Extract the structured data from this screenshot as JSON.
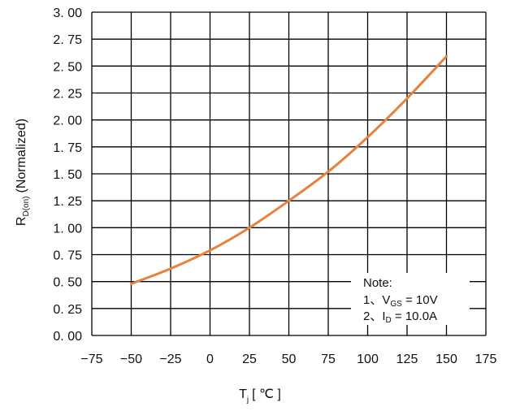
{
  "chart_data": {
    "type": "line",
    "xlabel_main": "T",
    "xlabel_sub": "j",
    "xlabel_unit": "[ ℃ ]",
    "ylabel_main": "R",
    "ylabel_sub": "D(on)",
    "ylabel_rest": "(Normalized)",
    "xlim": [
      -75,
      175
    ],
    "ylim": [
      0.0,
      3.0
    ],
    "x_ticks": [
      -75,
      -50,
      -25,
      0,
      25,
      50,
      75,
      100,
      125,
      150,
      175
    ],
    "x_tick_labels": [
      "−75",
      "−50",
      "−25",
      "0",
      "25",
      "50",
      "75",
      "100",
      "125",
      "150",
      "175"
    ],
    "y_ticks": [
      0,
      0.25,
      0.5,
      0.75,
      1.0,
      1.25,
      1.5,
      1.75,
      2.0,
      2.25,
      2.5,
      2.75,
      3.0
    ],
    "y_tick_labels": [
      "0. 00",
      "0. 25",
      "0. 50",
      "0. 75",
      "1. 00",
      "1. 25",
      "1. 50",
      "1. 75",
      "2. 00",
      "2. 25",
      "2. 50",
      "2. 75",
      "3. 00"
    ],
    "grid": true,
    "series": [
      {
        "color": "#e8823a",
        "x": [
          -50,
          -25,
          0,
          25,
          50,
          75,
          100,
          125,
          150
        ],
        "y": [
          0.48,
          0.62,
          0.79,
          1.0,
          1.25,
          1.52,
          1.84,
          2.2,
          2.59
        ]
      }
    ]
  },
  "note": {
    "title": "Note:",
    "line1_prefix": "1、V",
    "line1_sub": "GS",
    "line1_rest": " = 10V",
    "line2_prefix": "2、I",
    "line2_sub": "D",
    "line2_rest": " = 10.0A"
  }
}
